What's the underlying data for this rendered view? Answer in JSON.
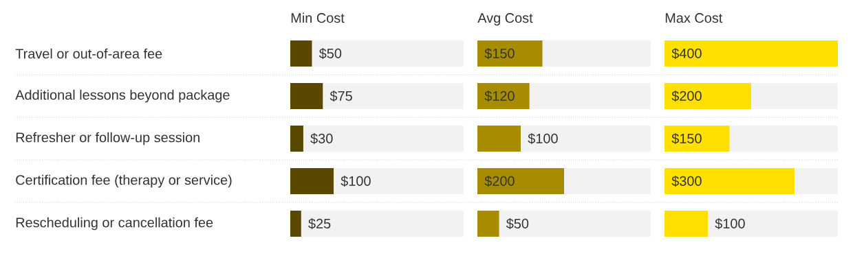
{
  "chart_data": [
    {
      "type": "bar",
      "orientation": "horizontal",
      "title": "Min Cost",
      "categories": [
        "Travel or out-of-area fee",
        "Additional lessons beyond package",
        "Refresher or follow-up session",
        "Certification fee (therapy or service)",
        "Rescheduling or cancellation fee"
      ],
      "values": [
        50,
        75,
        30,
        100,
        25
      ],
      "value_labels": [
        "$50",
        "$75",
        "$30",
        "$100",
        "$25"
      ],
      "color": "#5a4700",
      "xlim": [
        0,
        400
      ],
      "tick_labels": "y"
    },
    {
      "type": "bar",
      "orientation": "horizontal",
      "title": "Avg Cost",
      "categories": [
        null,
        null,
        null,
        null,
        null
      ],
      "values": [
        150,
        120,
        100,
        200,
        50
      ],
      "value_labels": [
        "$150",
        "$120",
        "$100",
        "$200",
        "$50"
      ],
      "color": "#a88c00",
      "xlim": [
        0,
        400
      ],
      "tick_labels": false
    },
    {
      "type": "bar",
      "orientation": "horizontal",
      "title": "Max Cost",
      "categories": [
        null,
        null,
        null,
        null,
        null
      ],
      "values": [
        400,
        200,
        150,
        300,
        100
      ],
      "value_labels": [
        "$400",
        "$200",
        "$150",
        "$300",
        "$100"
      ],
      "color": "#ffe000",
      "xlim": [
        0,
        400
      ],
      "tick_labels": false
    }
  ]
}
